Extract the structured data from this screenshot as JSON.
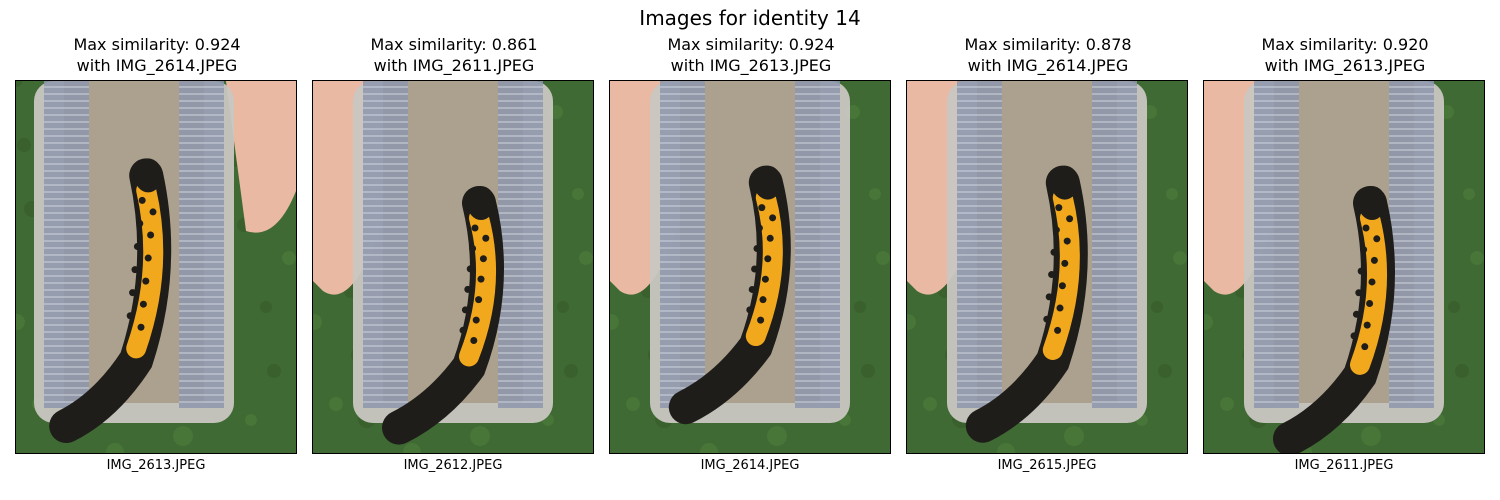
{
  "figure": {
    "title": "Images for identity 14"
  },
  "panels": [
    {
      "similarity_label": "Max similarity: 0.924",
      "match_label": "with IMG_2614.JPEG",
      "filename": "IMG_2613.JPEG",
      "hand": "right",
      "body_shift": 0.12,
      "body_len": 0.62
    },
    {
      "similarity_label": "Max similarity: 0.861",
      "match_label": "with IMG_2611.JPEG",
      "filename": "IMG_2612.JPEG",
      "hand": "left",
      "body_shift": 0.35,
      "body_len": 0.55
    },
    {
      "similarity_label": "Max similarity: 0.924",
      "match_label": "with IMG_2613.JPEG",
      "filename": "IMG_2614.JPEG",
      "hand": "left",
      "body_shift": 0.18,
      "body_len": 0.55
    },
    {
      "similarity_label": "Max similarity: 0.878",
      "match_label": "with IMG_2614.JPEG",
      "filename": "IMG_2615.JPEG",
      "hand": "left",
      "body_shift": 0.18,
      "body_len": 0.6
    },
    {
      "similarity_label": "Max similarity: 0.920",
      "match_label": "with IMG_2613.JPEG",
      "filename": "IMG_2611.JPEG",
      "hand": "left",
      "body_shift": 0.35,
      "body_len": 0.58
    }
  ],
  "colors": {
    "grass": "#3f6a33",
    "skin": "#e9b9a3",
    "box": "#c9c7c2",
    "sand": "#a99d8a",
    "mesh": "#8d97ad",
    "newt_belly": "#f2a81d",
    "newt_dark": "#1e1d1a"
  }
}
